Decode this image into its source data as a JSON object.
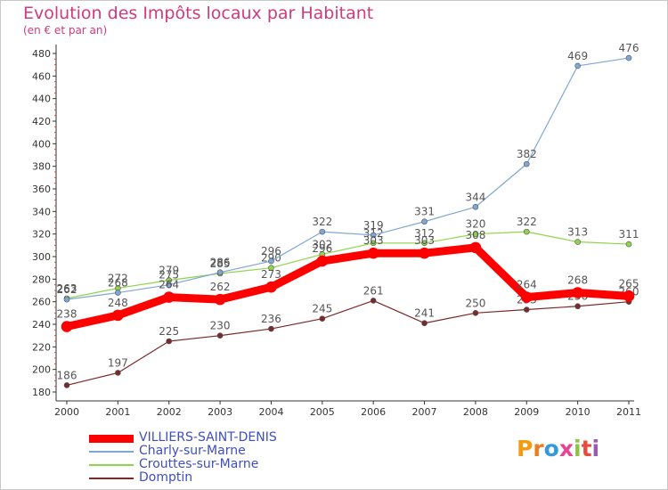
{
  "header": {
    "title": "Evolution des Impôts locaux par Habitant",
    "subtitle": "(en € et par an)"
  },
  "logo": {
    "text": "Proxiti",
    "colors": [
      "#f39c12",
      "#e67e22",
      "#3498db",
      "#e84393",
      "#8bc34a",
      "#e74c3c",
      "#9b59b6"
    ]
  },
  "chart_data": {
    "type": "line",
    "x": [
      "2000",
      "2001",
      "2002",
      "2003",
      "2004",
      "2005",
      "2006",
      "2007",
      "2008",
      "2009",
      "2010",
      "2011"
    ],
    "ylim": [
      180,
      480
    ],
    "yticks": [
      180,
      200,
      220,
      240,
      260,
      280,
      300,
      320,
      340,
      360,
      380,
      400,
      420,
      440,
      460,
      480
    ],
    "grid": false,
    "legend_position": "bottom-left",
    "series": [
      {
        "name": "Domptin",
        "color": "#7a2a2a",
        "width": 1.2,
        "values": [
          186,
          197,
          225,
          230,
          236,
          245,
          261,
          241,
          250,
          253,
          256,
          260
        ],
        "labels": [
          "186",
          "197",
          "225",
          "230",
          "236",
          "245",
          "261",
          "241",
          "250",
          "253",
          "256",
          "260"
        ]
      },
      {
        "name": "Crouttes-sur-Marne",
        "color": "#8fd44a",
        "width": 1.2,
        "values": [
          263,
          272,
          279,
          285,
          290,
          302,
          312,
          312,
          320,
          322,
          313,
          311
        ],
        "labels": [
          "263",
          "272",
          "279",
          "285",
          "290",
          "302",
          "312",
          "312",
          "320",
          "322",
          "313",
          "311"
        ]
      },
      {
        "name": "Charly-sur-Marne",
        "color": "#7fa7d6",
        "width": 1.2,
        "values": [
          262,
          268,
          275,
          286,
          296,
          322,
          319,
          331,
          344,
          382,
          469,
          476
        ],
        "labels": [
          "262",
          "268",
          "275",
          "286",
          "296",
          "322",
          "319",
          "331",
          "344",
          "382",
          "469",
          "476"
        ]
      },
      {
        "name": "VILLIERS-SAINT-DENIS",
        "color": "#ff0000",
        "width": 9,
        "values": [
          238,
          248,
          264,
          262,
          273,
          296,
          303,
          303,
          308,
          264,
          268,
          265
        ],
        "labels": [
          "238",
          "248",
          "264",
          "262",
          "273",
          "296",
          "303",
          "303",
          "308",
          "264",
          "268",
          "265"
        ]
      }
    ],
    "legend_order": [
      "VILLIERS-SAINT-DENIS",
      "Charly-sur-Marne",
      "Crouttes-sur-Marne",
      "Domptin"
    ]
  }
}
